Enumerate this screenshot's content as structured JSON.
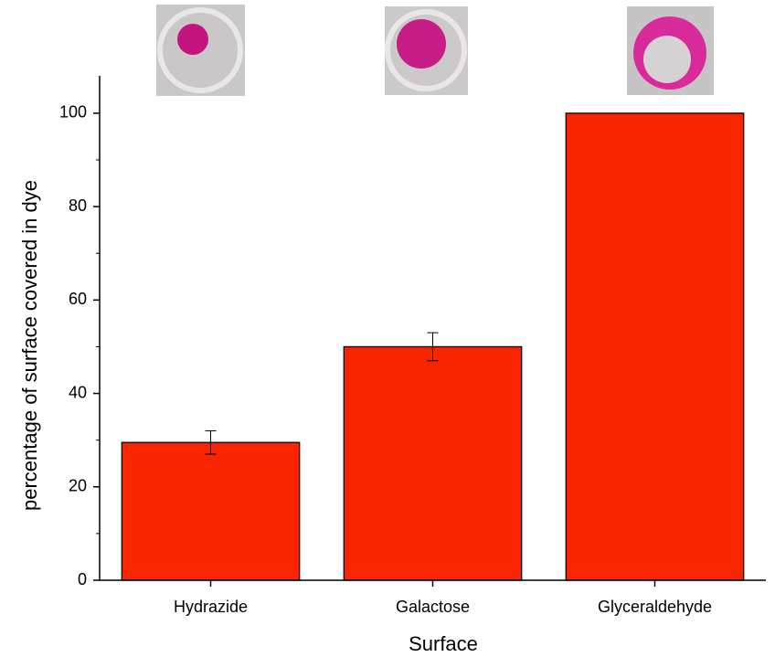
{
  "chart_data": {
    "type": "bar",
    "categories": [
      "Hydrazide",
      "Galactose",
      "Glyceraldehyde"
    ],
    "values": [
      29.5,
      50,
      100
    ],
    "errors": [
      2.5,
      3,
      null
    ],
    "color": "#f92400",
    "x_label": "Surface",
    "y_label": "percentage of surface covered in dye",
    "ylim": [
      0,
      108
    ],
    "yticks": [
      0,
      20,
      40,
      60,
      80,
      100
    ],
    "minor_yticks": [
      10,
      30,
      50,
      70,
      90
    ],
    "grid": false
  }
}
